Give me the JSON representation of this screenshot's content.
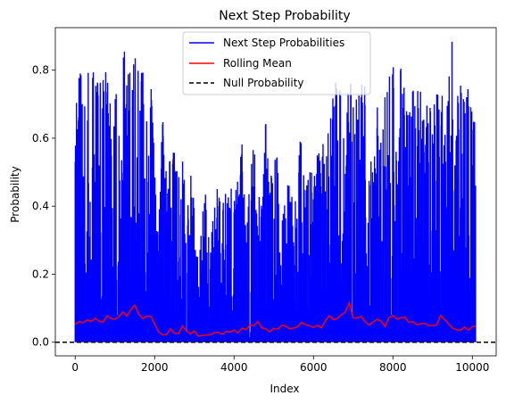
{
  "chart_data": {
    "type": "line",
    "title": "Next Step Probability",
    "xlabel": "Index",
    "ylabel": "Probability",
    "xlim": [
      -500,
      10600
    ],
    "ylim": [
      -0.04,
      0.925
    ],
    "xticks": [
      0,
      2000,
      4000,
      6000,
      8000,
      10000
    ],
    "yticks": [
      0.0,
      0.2,
      0.4,
      0.6,
      0.8
    ],
    "grid": false,
    "legend_position": "top-center",
    "n_points": 10080,
    "series": [
      {
        "name": "Next Step Probabilities",
        "color": "#0000ff",
        "style": "solid",
        "envelope": {
          "x": [
            0,
            100,
            200,
            300,
            400,
            500,
            600,
            700,
            800,
            900,
            1000,
            1100,
            1200,
            1300,
            1400,
            1500,
            1600,
            1700,
            1800,
            1900,
            2000,
            2100,
            2200,
            2300,
            2400,
            2500,
            2600,
            2700,
            2800,
            2900,
            3000,
            3100,
            3200,
            3300,
            3400,
            3500,
            3600,
            3700,
            3800,
            3900,
            4000,
            4100,
            4200,
            4300,
            4400,
            4500,
            4600,
            4700,
            4800,
            4900,
            5000,
            5100,
            5200,
            5300,
            5400,
            5500,
            5600,
            5700,
            5800,
            5900,
            6000,
            6100,
            6200,
            6300,
            6400,
            6500,
            6600,
            6700,
            6800,
            6900,
            7000,
            7100,
            7200,
            7300,
            7400,
            7500,
            7600,
            7700,
            7800,
            7900,
            8000,
            8100,
            8200,
            8300,
            8400,
            8500,
            8600,
            8700,
            8800,
            8900,
            9000,
            9100,
            9200,
            9300,
            9400,
            9500,
            9600,
            9700,
            9800,
            9900,
            10000,
            10080
          ],
          "max": [
            0.71,
            0.79,
            0.82,
            0.77,
            0.86,
            0.79,
            0.88,
            0.78,
            0.85,
            0.71,
            0.77,
            0.84,
            0.86,
            0.85,
            0.78,
            0.86,
            0.85,
            0.83,
            0.7,
            0.81,
            0.57,
            0.34,
            0.73,
            0.48,
            0.56,
            0.61,
            0.56,
            0.65,
            0.46,
            0.56,
            0.42,
            0.24,
            0.39,
            0.45,
            0.29,
            0.44,
            0.47,
            0.41,
            0.48,
            0.5,
            0.42,
            0.48,
            0.59,
            0.32,
            0.5,
            0.6,
            0.39,
            0.51,
            0.66,
            0.46,
            0.56,
            0.58,
            0.35,
            0.46,
            0.54,
            0.45,
            0.57,
            0.61,
            0.5,
            0.52,
            0.48,
            0.61,
            0.54,
            0.68,
            0.7,
            0.74,
            0.79,
            0.79,
            0.73,
            0.79,
            0.72,
            0.73,
            0.76,
            0.77,
            0.55,
            0.56,
            0.7,
            0.62,
            0.74,
            0.78,
            0.84,
            0.72,
            0.81,
            0.76,
            0.84,
            0.8,
            0.72,
            0.85,
            0.64,
            0.78,
            0.7,
            0.82,
            0.75,
            0.73,
            0.84,
            0.89,
            0.72,
            0.8,
            0.79,
            0.75,
            0.68,
            0.68
          ],
          "min": 0.0
        }
      },
      {
        "name": "Rolling Mean",
        "color": "#ff0000",
        "style": "solid",
        "x": [
          0,
          100,
          200,
          300,
          400,
          500,
          600,
          700,
          800,
          900,
          1000,
          1100,
          1200,
          1300,
          1400,
          1500,
          1600,
          1700,
          1800,
          1900,
          2000,
          2100,
          2200,
          2300,
          2400,
          2500,
          2600,
          2700,
          2800,
          2900,
          3000,
          3100,
          3200,
          3300,
          3400,
          3500,
          3600,
          3700,
          3800,
          3900,
          4000,
          4100,
          4200,
          4300,
          4400,
          4500,
          4600,
          4700,
          4800,
          4900,
          5000,
          5100,
          5200,
          5300,
          5400,
          5500,
          5600,
          5700,
          5800,
          5900,
          6000,
          6100,
          6200,
          6300,
          6400,
          6500,
          6600,
          6700,
          6800,
          6900,
          7000,
          7100,
          7200,
          7300,
          7400,
          7500,
          7600,
          7700,
          7800,
          7900,
          8000,
          8100,
          8200,
          8300,
          8400,
          8500,
          8600,
          8700,
          8800,
          8900,
          9000,
          9100,
          9200,
          9300,
          9400,
          9500,
          9600,
          9700,
          9800,
          9900,
          10000,
          10080
        ],
        "values": [
          0.05,
          0.065,
          0.055,
          0.07,
          0.06,
          0.075,
          0.065,
          0.06,
          0.08,
          0.07,
          0.065,
          0.075,
          0.09,
          0.08,
          0.095,
          0.11,
          0.085,
          0.07,
          0.075,
          0.08,
          0.055,
          0.03,
          0.025,
          0.02,
          0.035,
          0.028,
          0.03,
          0.045,
          0.03,
          0.025,
          0.03,
          0.015,
          0.02,
          0.025,
          0.022,
          0.028,
          0.03,
          0.025,
          0.032,
          0.028,
          0.035,
          0.03,
          0.04,
          0.035,
          0.05,
          0.045,
          0.06,
          0.04,
          0.035,
          0.03,
          0.04,
          0.035,
          0.045,
          0.05,
          0.035,
          0.04,
          0.045,
          0.055,
          0.05,
          0.045,
          0.04,
          0.05,
          0.045,
          0.06,
          0.075,
          0.07,
          0.065,
          0.08,
          0.09,
          0.12,
          0.075,
          0.07,
          0.08,
          0.06,
          0.05,
          0.055,
          0.065,
          0.06,
          0.05,
          0.07,
          0.08,
          0.065,
          0.07,
          0.075,
          0.06,
          0.065,
          0.055,
          0.05,
          0.06,
          0.045,
          0.05,
          0.055,
          0.075,
          0.07,
          0.05,
          0.045,
          0.04,
          0.035,
          0.045,
          0.04,
          0.05,
          0.05
        ]
      },
      {
        "name": "Null Probability",
        "color": "#000000",
        "style": "dashed",
        "value": 0.0
      }
    ]
  }
}
